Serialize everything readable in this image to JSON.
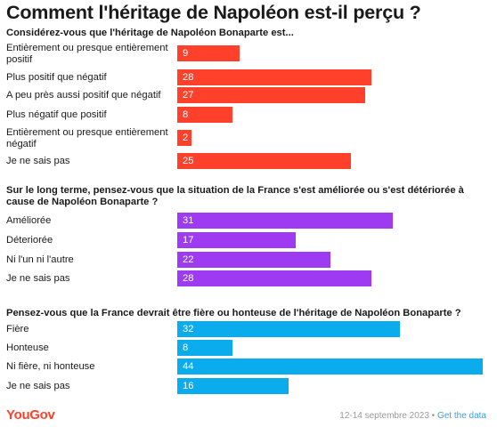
{
  "title": "Comment l'héritage de Napoléon est-il perçu ?",
  "chart_data": [
    {
      "type": "bar",
      "orientation": "horizontal",
      "title": "Considérez-vous que l'héritage de Napoléon Bonaparte est...",
      "color": "#ff412c",
      "categories": [
        "Entièrement ou presque entièrement positif",
        "Plus positif que négatif",
        "A peu près aussi positif que négatif",
        "Plus négatif que positif",
        "Entièrement ou presque entièrement négatif",
        "Je ne sais pas"
      ],
      "values": [
        9,
        28,
        27,
        8,
        2,
        25
      ]
    },
    {
      "type": "bar",
      "orientation": "horizontal",
      "title": "Sur le long terme, pensez-vous que la situation de la France s'est améliorée ou s'est détériorée à cause de Napoléon Bonaparte ?",
      "color": "#9d3af2",
      "categories": [
        "Améliorée",
        "Déteriorée",
        "Ni l'un ni l'autre",
        "Je ne sais pas"
      ],
      "values": [
        31,
        17,
        22,
        28
      ]
    },
    {
      "type": "bar",
      "orientation": "horizontal",
      "title": "Pensez-vous que la France devrait être fière ou honteuse de l'héritage de Napoléon Bonaparte ?",
      "color": "#0bacee",
      "categories": [
        "Fière",
        "Honteuse",
        "Ni fière, ni honteuse",
        "Je ne sais pas"
      ],
      "values": [
        32,
        8,
        44,
        16
      ]
    }
  ],
  "footer": {
    "brand": "YouGov",
    "date": "12-14 septembre 2023",
    "separator": " • ",
    "link": "Get the data"
  }
}
